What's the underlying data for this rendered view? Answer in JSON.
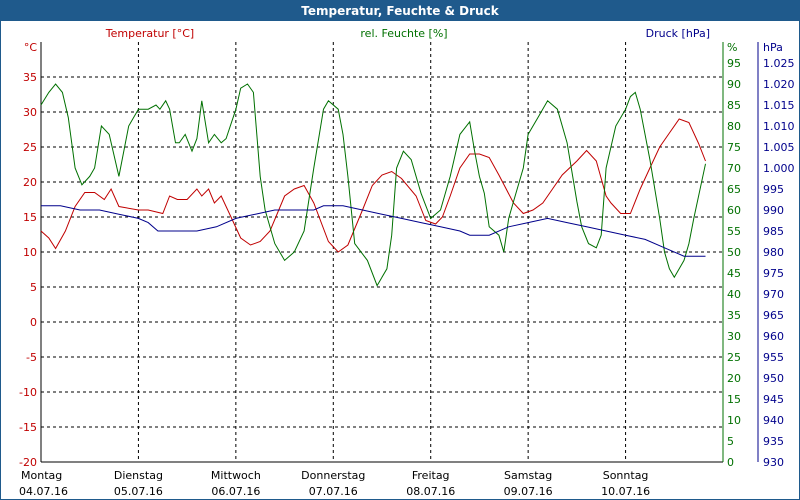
{
  "window": {
    "title": "Temperatur, Feuchte & Druck"
  },
  "chart_data": {
    "type": "line",
    "temperature_axis": {
      "unit": "°C",
      "label": "Temperatur [°C]",
      "ylim": [
        -20,
        40
      ],
      "ticks": [
        -20,
        -15,
        -10,
        -5,
        0,
        5,
        10,
        15,
        20,
        25,
        30,
        35
      ],
      "color": "#c00000"
    },
    "humidity_axis": {
      "unit": "%",
      "label": "rel. Feuchte [%]",
      "ylim": [
        0,
        100
      ],
      "ticks": [
        0,
        5,
        10,
        15,
        20,
        25,
        30,
        35,
        40,
        45,
        50,
        55,
        60,
        65,
        70,
        75,
        80,
        85,
        90,
        95
      ],
      "color": "#007000"
    },
    "pressure_axis": {
      "unit": "hPa",
      "label": "Druck [hPa]",
      "ylim": [
        930,
        1030
      ],
      "ticks": [
        "930",
        "935",
        "940",
        "945",
        "950",
        "955",
        "960",
        "965",
        "970",
        "975",
        "980",
        "985",
        "990",
        "995",
        "1.000",
        "1.005",
        "1.010",
        "1.015",
        "1.020",
        "1.025"
      ],
      "color": "#00008b"
    },
    "x_range": [
      0,
      7
    ],
    "days": [
      {
        "weekday": "Montag",
        "date": "04.07.16"
      },
      {
        "weekday": "Dienstag",
        "date": "05.07.16"
      },
      {
        "weekday": "Mittwoch",
        "date": "06.07.16"
      },
      {
        "weekday": "Donnerstag",
        "date": "07.07.16"
      },
      {
        "weekday": "Freitag",
        "date": "08.07.16"
      },
      {
        "weekday": "Samstag",
        "date": "09.07.16"
      },
      {
        "weekday": "Sonntag",
        "date": "10.07.16"
      }
    ],
    "grid": true,
    "series": [
      {
        "name": "Temperatur [°C]",
        "axis": "temperature",
        "color": "#c00000",
        "x": [
          0,
          0.08,
          0.15,
          0.25,
          0.35,
          0.45,
          0.55,
          0.65,
          0.72,
          0.8,
          1.0,
          1.1,
          1.25,
          1.32,
          1.4,
          1.5,
          1.6,
          1.65,
          1.72,
          1.78,
          1.85,
          1.95,
          2.05,
          2.15,
          2.25,
          2.35,
          2.5,
          2.6,
          2.7,
          2.8,
          2.95,
          3.05,
          3.15,
          3.3,
          3.4,
          3.5,
          3.6,
          3.7,
          3.85,
          3.95,
          4.05,
          4.12,
          4.2,
          4.3,
          4.4,
          4.5,
          4.6,
          4.7,
          4.85,
          4.95,
          5.05,
          5.15,
          5.25,
          5.35,
          5.5,
          5.6,
          5.7,
          5.75,
          5.8,
          5.85,
          5.95,
          6.05,
          6.15,
          6.25,
          6.35,
          6.45,
          6.55,
          6.65,
          6.75,
          6.82
        ],
        "values": [
          13,
          12,
          10.5,
          13,
          16.5,
          18.5,
          18.5,
          17.5,
          19,
          16.5,
          16,
          16,
          15.5,
          18,
          17.5,
          17.5,
          19,
          18,
          19,
          17,
          18,
          15,
          12,
          11,
          11.5,
          13,
          18,
          19,
          19.5,
          17,
          11.5,
          10,
          11,
          16,
          19.5,
          21,
          21.5,
          20.5,
          18,
          14.5,
          14,
          15,
          18,
          22,
          24,
          24,
          23.5,
          21,
          17,
          15.5,
          16,
          17,
          19,
          21,
          23,
          24.5,
          23,
          20.5,
          18,
          17,
          15.5,
          15.5,
          19,
          22,
          25,
          27,
          29,
          28.5,
          25.5,
          23
        ]
      },
      {
        "name": "rel. Feuchte [%]",
        "axis": "humidity",
        "color": "#007000",
        "x": [
          0,
          0.08,
          0.15,
          0.22,
          0.28,
          0.35,
          0.42,
          0.5,
          0.55,
          0.62,
          0.7,
          0.8,
          0.9,
          1.0,
          1.1,
          1.18,
          1.22,
          1.28,
          1.32,
          1.38,
          1.42,
          1.48,
          1.55,
          1.6,
          1.65,
          1.72,
          1.78,
          1.85,
          1.9,
          2.0,
          2.05,
          2.12,
          2.18,
          2.25,
          2.3,
          2.4,
          2.5,
          2.6,
          2.7,
          2.8,
          2.9,
          2.95,
          3.05,
          3.1,
          3.15,
          3.22,
          3.35,
          3.45,
          3.55,
          3.6,
          3.65,
          3.72,
          3.8,
          3.9,
          4.0,
          4.1,
          4.2,
          4.3,
          4.4,
          4.45,
          4.5,
          4.55,
          4.6,
          4.7,
          4.75,
          4.8,
          4.85,
          4.95,
          5.0,
          5.1,
          5.2,
          5.3,
          5.4,
          5.5,
          5.55,
          5.62,
          5.7,
          5.75,
          5.8,
          5.9,
          6.0,
          6.05,
          6.1,
          6.15,
          6.25,
          6.35,
          6.4,
          6.45,
          6.5,
          6.55,
          6.6,
          6.65,
          6.7,
          6.82
        ],
        "values": [
          85,
          88,
          90,
          88,
          82,
          70,
          66,
          68,
          70,
          80,
          78,
          68,
          80,
          84,
          84,
          85,
          84,
          86,
          84,
          76,
          76,
          78,
          74,
          77,
          86,
          76,
          78,
          76,
          77,
          84,
          89,
          90,
          88,
          68,
          60,
          52,
          48,
          50,
          55,
          70,
          84,
          86,
          84,
          78,
          68,
          52,
          48,
          42,
          46,
          54,
          70,
          74,
          72,
          64,
          58,
          60,
          68,
          78,
          81,
          74,
          68,
          64,
          56,
          54,
          50,
          58,
          62,
          70,
          78,
          82,
          86,
          84,
          76,
          62,
          56,
          52,
          51,
          54,
          70,
          80,
          84,
          87,
          88,
          84,
          72,
          58,
          50,
          46,
          44,
          46,
          48,
          52,
          58,
          71
        ]
      },
      {
        "name": "Druck [hPa]",
        "axis": "pressure",
        "color": "#00008b",
        "x": [
          0,
          0.2,
          0.4,
          0.6,
          0.8,
          1.0,
          1.1,
          1.2,
          1.5,
          1.6,
          1.8,
          2.0,
          2.2,
          2.4,
          2.6,
          2.8,
          2.9,
          3.1,
          3.3,
          3.5,
          3.7,
          3.9,
          4.1,
          4.3,
          4.4,
          4.5,
          4.6,
          4.8,
          5.0,
          5.2,
          5.4,
          5.6,
          5.8,
          6.0,
          6.2,
          6.4,
          6.6,
          6.82
        ],
        "values": [
          991,
          991,
          990,
          990,
          989,
          988,
          987,
          985,
          985,
          985,
          986,
          988,
          989,
          990,
          990,
          990,
          991,
          991,
          990,
          989,
          988,
          987,
          986,
          985,
          984,
          984,
          984,
          986,
          987,
          988,
          987,
          986,
          985,
          984,
          983,
          981,
          979,
          979
        ]
      }
    ]
  }
}
